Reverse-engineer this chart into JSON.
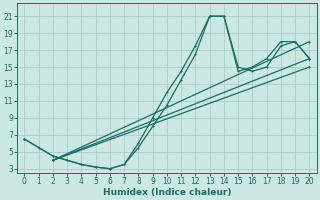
{
  "xlabel": "Humidex (Indice chaleur)",
  "bg_color": "#cce8e4",
  "grid_color": "#aacec9",
  "line_color": "#1a6e62",
  "xlim": [
    -0.5,
    20.5
  ],
  "ylim": [
    2.5,
    22.5
  ],
  "xticks": [
    0,
    1,
    2,
    3,
    4,
    5,
    6,
    7,
    8,
    9,
    10,
    11,
    12,
    13,
    14,
    15,
    16,
    17,
    18,
    19,
    20
  ],
  "yticks": [
    3,
    5,
    7,
    9,
    11,
    13,
    15,
    17,
    19,
    21
  ],
  "series": [
    {
      "x": [
        0,
        1,
        2,
        3,
        4,
        5,
        6,
        7,
        8,
        9,
        10,
        11,
        12,
        13,
        14,
        15,
        16,
        17,
        18,
        19,
        20
      ],
      "y": [
        6.5,
        5.5,
        4.5,
        4.0,
        3.5,
        3.2,
        3.0,
        3.5,
        5.5,
        8.0,
        10.5,
        13.5,
        16.5,
        21.0,
        21.0,
        15.0,
        14.5,
        15.0,
        17.5,
        18.0,
        16.0
      ]
    },
    {
      "x": [
        0,
        2,
        3,
        4,
        5,
        6,
        7,
        8,
        9,
        10,
        11,
        12,
        13,
        14,
        15,
        16,
        17,
        18,
        19,
        20
      ],
      "y": [
        6.5,
        4.5,
        4.0,
        3.5,
        3.2,
        3.0,
        3.5,
        6.0,
        9.0,
        12.0,
        14.5,
        17.5,
        21.0,
        21.0,
        14.5,
        15.0,
        16.0,
        18.0,
        18.0,
        16.0
      ]
    },
    {
      "x": [
        2,
        20
      ],
      "y": [
        4.0,
        18.0
      ]
    },
    {
      "x": [
        2,
        20
      ],
      "y": [
        4.0,
        16.0
      ]
    },
    {
      "x": [
        2,
        20
      ],
      "y": [
        4.0,
        15.0
      ]
    }
  ]
}
